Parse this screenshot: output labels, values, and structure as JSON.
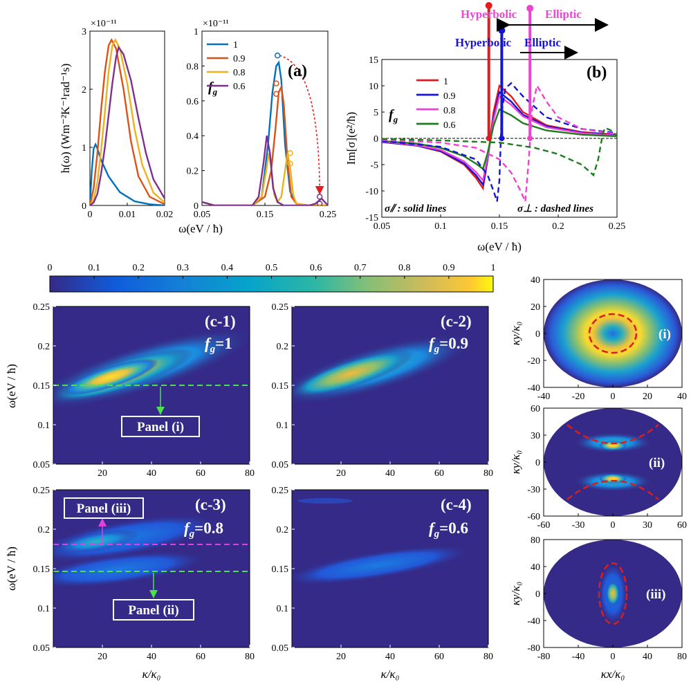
{
  "panel_a": {
    "label": "(a)",
    "ylabel": "h(ω) (Wm⁻²K⁻¹rad⁻¹s)",
    "xlabel": "ω(eV / ħ)",
    "exp_left": "×10⁻¹¹",
    "exp_right": "×10⁻¹¹",
    "legend_title": "f",
    "legend_sub": "g"
  },
  "panel_b": {
    "label": "(b)",
    "ylabel": "Im[σ](e²/ħ)",
    "xlabel": "ω(eV / ħ)",
    "legend_title": "f",
    "legend_sub": "g",
    "note_solid": "σ⫽ : solid lines",
    "note_dashed": "σ⊥ : dashed lines",
    "hyp_top": "Hyperbolic",
    "ell_top": "Elliptic",
    "hyp_bottom": "Hyperbolic",
    "ell_bottom": "Elliptic"
  },
  "colorbar": {
    "ticks": [
      "0",
      "0.1",
      "0.2",
      "0.3",
      "0.4",
      "0.5",
      "0.6",
      "0.7",
      "0.8",
      "0.9",
      "1"
    ]
  },
  "panel_c": {
    "ylabel": "ω(eV / ħ)",
    "xlabel": "κ/κ₀",
    "c1_title": "(c-1)",
    "c1_f": "f",
    "c1_val": "=1",
    "c2_title": "(c-2)",
    "c2_f": "f",
    "c2_val": "=0.9",
    "c3_title": "(c-3)",
    "c3_f": "f",
    "c3_val": "=0.8",
    "c4_title": "(c-4)",
    "c4_f": "f",
    "c4_val": "=0.6",
    "fsub": "g",
    "box_i": "Panel (i)",
    "box_ii": "Panel (ii)",
    "box_iii": "Panel (iii)"
  },
  "panel_r": {
    "ylabel": "κy/κ₀",
    "xlabel": "κx/κ₀",
    "lab_i": "(i)",
    "lab_ii": "(ii)",
    "lab_iii": "(iii)"
  },
  "colors": {
    "s1": "#0072BD",
    "s09": "#D95319",
    "s08": "#EDB120",
    "s06": "#7E2F8E",
    "b1": "#E41A1C",
    "b09": "#1414D2",
    "b08": "#EE42D0",
    "b06": "#1E7B1E",
    "green_dash": "#4CE04C",
    "magenta_dash": "#E040E0",
    "red_dash": "#D62020"
  },
  "chart_data": [
    {
      "id": "a-left",
      "type": "line",
      "xlim": [
        0,
        0.02
      ],
      "ylim": [
        0,
        3
      ],
      "y_scale_exponent": -11,
      "x_ticks": [
        0,
        0.01,
        0.02
      ],
      "y_ticks": [
        0,
        1,
        2,
        3
      ],
      "series": [
        {
          "name": "1",
          "x": [
            0,
            0.0005,
            0.001,
            0.0015,
            0.002,
            0.003,
            0.005,
            0.008,
            0.012,
            0.016,
            0.02
          ],
          "y": [
            0,
            0.6,
            0.98,
            1.05,
            0.98,
            0.78,
            0.5,
            0.23,
            0.07,
            0.02,
            0.0
          ]
        },
        {
          "name": "0.9",
          "x": [
            0,
            0.001,
            0.002,
            0.003,
            0.004,
            0.005,
            0.0058,
            0.007,
            0.009,
            0.011,
            0.013,
            0.016,
            0.02
          ],
          "y": [
            0,
            0.3,
            0.9,
            1.65,
            2.3,
            2.75,
            2.85,
            2.7,
            2.0,
            1.1,
            0.5,
            0.15,
            0.02
          ]
        },
        {
          "name": "0.8",
          "x": [
            0,
            0.001,
            0.002,
            0.003,
            0.004,
            0.005,
            0.006,
            0.0068,
            0.008,
            0.01,
            0.012,
            0.014,
            0.017,
            0.02
          ],
          "y": [
            0,
            0.1,
            0.4,
            0.95,
            1.6,
            2.3,
            2.75,
            2.85,
            2.7,
            2.1,
            1.3,
            0.7,
            0.22,
            0.05
          ]
        },
        {
          "name": "0.6",
          "x": [
            0,
            0.001,
            0.002,
            0.003,
            0.004,
            0.005,
            0.006,
            0.007,
            0.0077,
            0.009,
            0.011,
            0.013,
            0.015,
            0.017,
            0.02
          ],
          "y": [
            0,
            0.05,
            0.2,
            0.55,
            1.0,
            1.55,
            2.1,
            2.55,
            2.72,
            2.6,
            2.15,
            1.5,
            0.9,
            0.45,
            0.12
          ]
        }
      ]
    },
    {
      "id": "a-right",
      "type": "line",
      "xlim": [
        0.05,
        0.25
      ],
      "ylim": [
        0,
        1
      ],
      "y_scale_exponent": -11,
      "x_ticks": [
        0.05,
        0.15,
        0.25
      ],
      "y_ticks": [
        0,
        0.2,
        0.4,
        0.6,
        0.8,
        1
      ],
      "legend_title": "fg",
      "series": [
        {
          "name": "1",
          "x": [
            0.05,
            0.07,
            0.1,
            0.13,
            0.145,
            0.155,
            0.162,
            0.168,
            0.172,
            0.176,
            0.182,
            0.19,
            0.2,
            0.22,
            0.25
          ],
          "y": [
            0.02,
            0.0,
            0.0,
            0.0,
            0.05,
            0.35,
            0.65,
            0.8,
            0.82,
            0.72,
            0.35,
            0.08,
            0.01,
            0.0,
            0.0
          ]
        },
        {
          "name": "0.9",
          "x": [
            0.05,
            0.07,
            0.1,
            0.13,
            0.15,
            0.16,
            0.167,
            0.172,
            0.176,
            0.18,
            0.186,
            0.192,
            0.2,
            0.22,
            0.25
          ],
          "y": [
            0.02,
            0.0,
            0.0,
            0.0,
            0.05,
            0.2,
            0.45,
            0.65,
            0.68,
            0.58,
            0.25,
            0.05,
            0.01,
            0.0,
            0.0
          ]
        },
        {
          "name": "0.8",
          "x": [
            0.05,
            0.07,
            0.1,
            0.13,
            0.145,
            0.152,
            0.156,
            0.16,
            0.165,
            0.17,
            0.176,
            0.182,
            0.186,
            0.19,
            0.195,
            0.2,
            0.22,
            0.25
          ],
          "y": [
            0.02,
            0.0,
            0.0,
            0.0,
            0.05,
            0.2,
            0.3,
            0.22,
            0.06,
            0.02,
            0.05,
            0.2,
            0.3,
            0.22,
            0.06,
            0.01,
            0.0,
            0.0
          ]
        },
        {
          "name": "0.6",
          "x": [
            0.05,
            0.07,
            0.1,
            0.13,
            0.14,
            0.148,
            0.153,
            0.158,
            0.163,
            0.17,
            0.18,
            0.2,
            0.22,
            0.23,
            0.24,
            0.25
          ],
          "y": [
            0.02,
            0.0,
            0.0,
            0.0,
            0.05,
            0.25,
            0.4,
            0.3,
            0.1,
            0.02,
            0.0,
            0.0,
            0.0,
            0.01,
            0.04,
            0.0
          ]
        }
      ],
      "markers": {
        "peak": [
          0.17,
          0.86
        ],
        "moved": [
          0.237,
          0.05
        ]
      }
    },
    {
      "id": "b",
      "type": "line",
      "xlim": [
        0.05,
        0.25
      ],
      "ylim": [
        -15,
        15
      ],
      "x_ticks": [
        0.05,
        0.1,
        0.15,
        0.2,
        0.25
      ],
      "y_ticks": [
        -15,
        -10,
        -5,
        0,
        5,
        10,
        15
      ],
      "legend_title": "fg",
      "series": [
        {
          "name": "1",
          "style": "solid",
          "x": [
            0.05,
            0.08,
            0.1,
            0.12,
            0.13,
            0.136,
            0.14,
            0.145,
            0.15,
            0.16,
            0.17,
            0.19,
            0.22,
            0.25
          ],
          "y": [
            -0.7,
            -1.4,
            -2.5,
            -5,
            -7.5,
            -9.5,
            -4,
            5,
            10,
            8,
            5,
            2.5,
            1.2,
            0.7
          ]
        },
        {
          "name": "0.9",
          "style": "solid",
          "x": [
            0.05,
            0.08,
            0.1,
            0.12,
            0.13,
            0.136,
            0.14,
            0.145,
            0.15,
            0.16,
            0.17,
            0.19,
            0.22,
            0.25
          ],
          "y": [
            -0.7,
            -1.4,
            -2.4,
            -4.8,
            -7,
            -8.8,
            -4,
            4,
            8.8,
            7,
            4.5,
            2.3,
            1.1,
            0.6
          ]
        },
        {
          "name": "0.8",
          "style": "solid",
          "x": [
            0.05,
            0.08,
            0.1,
            0.12,
            0.13,
            0.136,
            0.14,
            0.145,
            0.15,
            0.16,
            0.17,
            0.19,
            0.22,
            0.25
          ],
          "y": [
            -0.6,
            -1.3,
            -2.2,
            -4.4,
            -6.4,
            -8,
            -3.6,
            3.5,
            8,
            6.4,
            4.2,
            2.1,
            1.0,
            0.5
          ]
        },
        {
          "name": "0.6",
          "style": "solid",
          "x": [
            0.05,
            0.08,
            0.1,
            0.12,
            0.13,
            0.136,
            0.14,
            0.145,
            0.15,
            0.16,
            0.17,
            0.19,
            0.22,
            0.25
          ],
          "y": [
            -0.5,
            -1,
            -1.8,
            -3.4,
            -4.8,
            -5.8,
            -2.8,
            2.4,
            5.5,
            4.4,
            2.9,
            1.5,
            0.7,
            0.4
          ]
        },
        {
          "name": "0.9 (σ⊥)",
          "style": "dashed",
          "x": [
            0.05,
            0.1,
            0.13,
            0.14,
            0.145,
            0.148,
            0.15,
            0.152,
            0.155,
            0.16,
            0.17,
            0.19,
            0.22,
            0.25
          ],
          "y": [
            -0.5,
            -1.6,
            -4,
            -7,
            -10,
            -12,
            -8,
            5,
            9.5,
            10.5,
            8,
            4,
            1.8,
            1
          ]
        },
        {
          "name": "0.8 (σ⊥)",
          "style": "dashed",
          "x": [
            0.05,
            0.1,
            0.13,
            0.15,
            0.16,
            0.168,
            0.172,
            0.175,
            0.178,
            0.182,
            0.19,
            0.2,
            0.22,
            0.25
          ],
          "y": [
            -0.3,
            -0.8,
            -1.8,
            -4,
            -6.5,
            -10,
            -12,
            -4,
            6,
            10,
            7,
            4,
            1.8,
            0.8
          ]
        },
        {
          "name": "0.6 (σ⊥)",
          "style": "dashed",
          "x": [
            0.05,
            0.1,
            0.15,
            0.18,
            0.2,
            0.22,
            0.23,
            0.234,
            0.238,
            0.24,
            0.245,
            0.25
          ],
          "y": [
            -0.1,
            -0.4,
            -0.8,
            -1.8,
            -3,
            -5,
            -7,
            -4,
            1,
            2,
            1.5,
            0.5
          ]
        }
      ],
      "markers": [
        {
          "name": "1",
          "x": 0.141
        },
        {
          "name": "0.9",
          "x": 0.152
        },
        {
          "name": "0.8",
          "x": 0.176
        }
      ]
    },
    {
      "id": "c",
      "type": "heatmap",
      "xlim": [
        0,
        80
      ],
      "ylim": [
        0.05,
        0.25
      ],
      "x_ticks": [
        20,
        40,
        60,
        80
      ],
      "y_ticks": [
        0.05,
        0.1,
        0.15,
        0.2,
        0.25
      ],
      "colorbar_range": [
        0,
        1
      ],
      "panels": [
        {
          "name": "c-1",
          "fg": 1,
          "lines": [
            0.15
          ]
        },
        {
          "name": "c-2",
          "fg": 0.9,
          "lines": []
        },
        {
          "name": "c-3",
          "fg": 0.8,
          "lines": [
            0.15,
            0.184
          ]
        },
        {
          "name": "c-4",
          "fg": 0.6,
          "lines": []
        }
      ]
    },
    {
      "id": "r",
      "type": "heatmap",
      "panels": [
        {
          "name": "i",
          "xlim": [
            -40,
            40
          ],
          "ylim": [
            -40,
            40
          ],
          "x_ticks": [
            -40,
            -20,
            0,
            20,
            40
          ],
          "y_ticks": [
            -40,
            -20,
            0,
            20,
            40
          ],
          "curve": "ellipse"
        },
        {
          "name": "ii",
          "xlim": [
            -60,
            60
          ],
          "ylim": [
            -60,
            60
          ],
          "x_ticks": [
            -60,
            -30,
            0,
            30,
            60
          ],
          "y_ticks": [
            -60,
            -30,
            0,
            30,
            60
          ],
          "curve": "hyperbola"
        },
        {
          "name": "iii",
          "xlim": [
            -80,
            80
          ],
          "ylim": [
            -80,
            80
          ],
          "x_ticks": [
            -80,
            -40,
            0,
            40,
            80
          ],
          "y_ticks": [
            -80,
            -40,
            0,
            40,
            80
          ],
          "curve": "ellipse"
        }
      ]
    }
  ]
}
